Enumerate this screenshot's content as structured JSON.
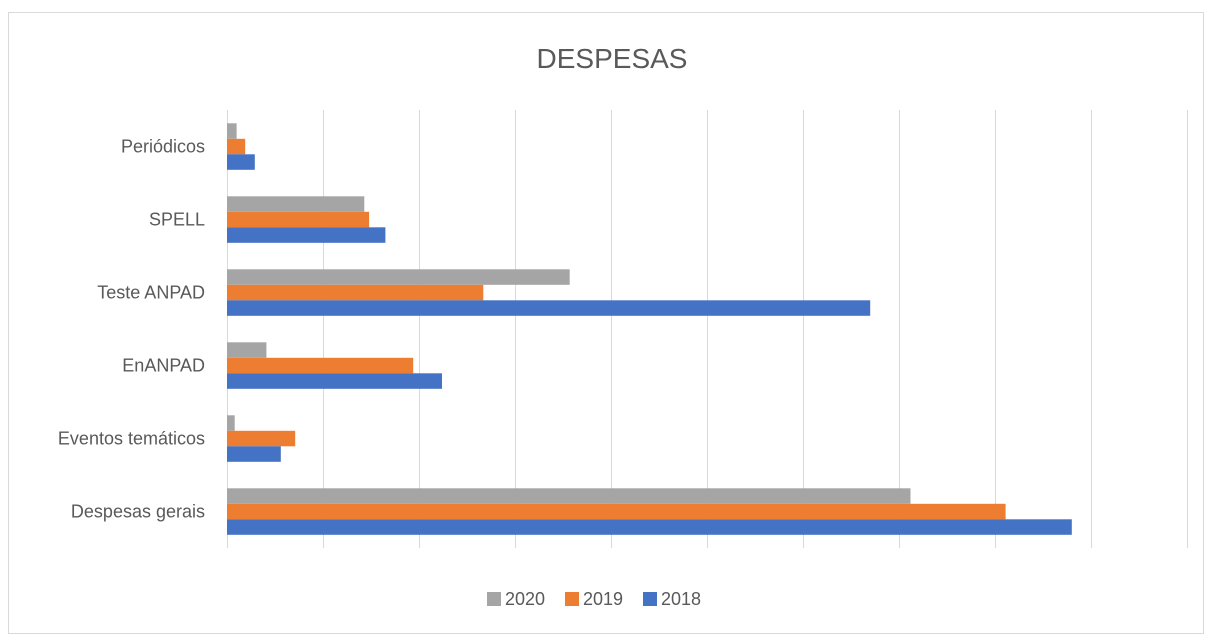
{
  "chart_data": {
    "type": "bar",
    "orientation": "horizontal",
    "title": "DESPESAS",
    "categories": [
      "Periódicos",
      "SPELL",
      "Teste ANPAD",
      "EnANPAD",
      "Eventos temáticos",
      "Despesas gerais"
    ],
    "series": [
      {
        "name": "2020",
        "color": "#a5a5a5",
        "values": [
          1,
          14.3,
          35.7,
          4.1,
          0.8,
          71.2
        ]
      },
      {
        "name": "2019",
        "color": "#ed7d31",
        "values": [
          1.9,
          14.8,
          26.7,
          19.4,
          7.1,
          81.1
        ]
      },
      {
        "name": "2018",
        "color": "#4472c4",
        "values": [
          2.9,
          16.5,
          67,
          22.4,
          5.6,
          88
        ]
      }
    ],
    "xlim": [
      0,
      100
    ],
    "grid": true,
    "legend": "bottom"
  }
}
